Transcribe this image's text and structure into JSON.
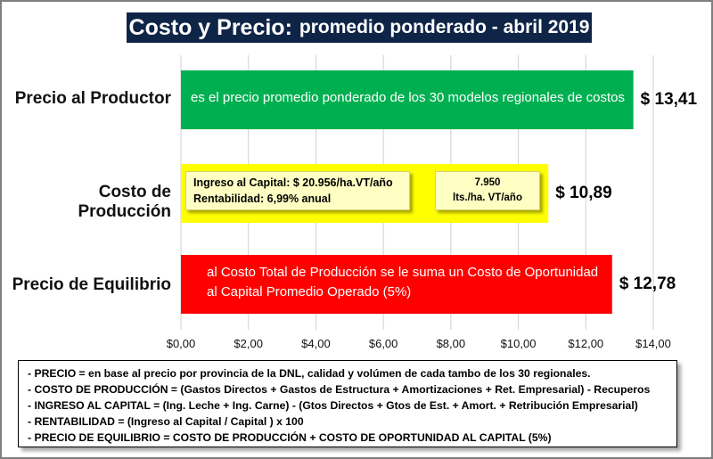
{
  "title": {
    "part1": "Costo  y Precio:",
    "part2": "promedio ponderado - abril 2019"
  },
  "chart_data": {
    "type": "bar",
    "orientation": "horizontal",
    "categories": [
      "Precio al Productor",
      "Costo de Producción",
      "Precio de Equilibrio"
    ],
    "values": [
      13.41,
      10.89,
      12.78
    ],
    "value_labels": [
      "$ 13,41",
      "$ 10,89",
      "$ 12,78"
    ],
    "colors": [
      "#00b050",
      "#ffff00",
      "#ff0000"
    ],
    "xlim": [
      0,
      14
    ],
    "x_ticks": [
      0,
      2,
      4,
      6,
      8,
      10,
      12,
      14
    ],
    "x_tick_labels": [
      "$0,00",
      "$2,00",
      "$4,00",
      "$6,00",
      "$8,00",
      "$10,00",
      "$12,00",
      "$14,00"
    ],
    "grid": true,
    "bar_annotations": {
      "precio_productor": "es el precio promedio ponderado de los 30 modelos regionales de costos",
      "precio_equilibrio_line1": "al Costo Total de Producción se le suma un Costo de Oportunidad",
      "precio_equilibrio_line2": "al Capital Promedio Operado (5%)"
    },
    "costo_boxes": {
      "ingreso_line1": "Ingreso al Capital: $ 20.956/ha.VT/año",
      "ingreso_line2": "Rentabilidad: 6,99% anual",
      "litros_line1": "7.950",
      "litros_line2": "lts./ha. VT/año"
    }
  },
  "notes": [
    "- PRECIO = en base al precio por provincia de la DNL, calidad y volúmen de cada tambo de los 30 regionales.",
    "- COSTO DE PRODUCCIÓN = (Gastos Directos + Gastos de Estructura + Amortizaciones + Ret. Empresarial) - Recuperos",
    "- INGRESO AL CAPITAL = (Ing. Leche + Ing. Carne) - (Gtos Directos + Gtos de Est. + Amort. + Retribución Empresarial)",
    "- RENTABILIDAD = (Ingreso al Capital / Capital ) x 100",
    "- PRECIO DE EQUILIBRIO = COSTO DE PRODUCCIÓN + COSTO DE OPORTUNIDAD AL CAPITAL (5%)"
  ]
}
